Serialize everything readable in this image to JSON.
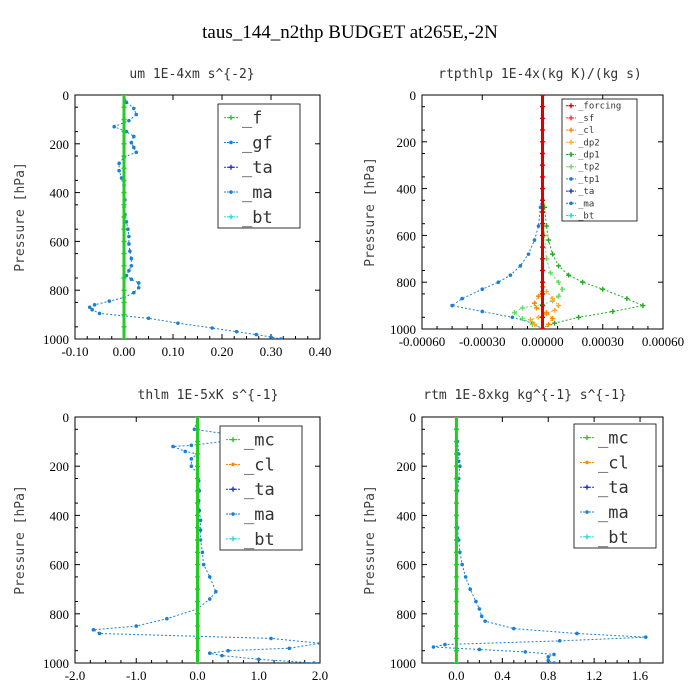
{
  "title": "taus_144_n2thp  BUDGET at265E,-2N",
  "chart_data": [
    {
      "type": "line",
      "title": "um  1E-4xm s^{-2}",
      "ylabel": "Pressure [hPa]",
      "xlim": [
        -0.1,
        0.4
      ],
      "ylim": [
        1000,
        0
      ],
      "xticks": [
        "-0.10",
        "0.00",
        "0.10",
        "0.20",
        "0.30",
        "0.40"
      ],
      "xtick_values": [
        -0.1,
        0,
        0.1,
        0.2,
        0.3,
        0.4
      ],
      "yticks": [
        "0",
        "200",
        "400",
        "600",
        "800",
        "1000"
      ],
      "ytick_values": [
        0,
        200,
        400,
        600,
        800,
        1000
      ],
      "legend_size": "big",
      "legend": [
        "_f",
        "_gf",
        "_ta",
        "_ma",
        "_bt"
      ],
      "series": [
        {
          "name": "_ma",
          "color": "#1a7fd6",
          "marker": "dot",
          "x": [
            0.0,
            0.005,
            0.02,
            0.025,
            0.01,
            -0.02,
            0.005,
            0.02,
            0.015,
            0.02,
            0.025,
            0.0,
            -0.01,
            -0.01,
            -0.005,
            0.0,
            0.0,
            0.002,
            0.0,
            0.002,
            0.005,
            0.008,
            0.01,
            0.01,
            0.012,
            0.015,
            0.015,
            0.01,
            0.005,
            0.015,
            0.03,
            0.03,
            0.02,
            0.0,
            -0.03,
            -0.06,
            -0.07,
            -0.065,
            -0.05,
            0.05,
            0.11,
            0.18,
            0.23,
            0.27,
            0.3,
            0.32
          ],
          "y": [
            0,
            30,
            55,
            80,
            105,
            130,
            150,
            170,
            195,
            215,
            235,
            255,
            280,
            310,
            340,
            370,
            400,
            430,
            460,
            490,
            520,
            550,
            580,
            610,
            640,
            670,
            700,
            720,
            740,
            755,
            770,
            790,
            810,
            830,
            845,
            860,
            870,
            880,
            895,
            915,
            935,
            955,
            970,
            982,
            992,
            1000
          ]
        },
        {
          "name": "_f",
          "color": "#22cc22",
          "marker": "cross",
          "x": [
            0,
            0,
            0,
            0,
            0,
            0,
            0,
            0,
            0,
            0,
            0,
            0,
            0,
            0,
            0,
            0,
            0,
            0,
            0,
            0,
            0
          ],
          "y": [
            0,
            50,
            100,
            150,
            200,
            250,
            300,
            350,
            400,
            450,
            500,
            550,
            600,
            650,
            700,
            750,
            800,
            850,
            900,
            950,
            1000
          ]
        }
      ]
    },
    {
      "type": "line",
      "title": "rtpthlp  1E-4x(kg K)/(kg s)",
      "ylabel": "Pressure [hPa]",
      "xlim": [
        -0.0006,
        0.0006
      ],
      "ylim": [
        1000,
        0
      ],
      "xticks": [
        "-0.00060",
        "-0.00030",
        "0.00000",
        "0.00030",
        "0.00060"
      ],
      "xtick_values": [
        -0.0006,
        -0.0003,
        0,
        0.0003,
        0.0006
      ],
      "yticks": [
        "0",
        "200",
        "400",
        "600",
        "800",
        "1000"
      ],
      "ytick_values": [
        0,
        200,
        400,
        600,
        800,
        1000
      ],
      "legend_size": "small",
      "legend": [
        "_forcing",
        "_sf",
        "_cl",
        "_dp2",
        "_dp1",
        "_tp2",
        "_tp1",
        "_ta",
        "_ma",
        "_bt"
      ],
      "series": [
        {
          "name": "_tp1",
          "color": "#1a7fd6",
          "marker": "dot",
          "x": [
            0,
            0,
            -1e-05,
            -2e-05,
            -4e-05,
            -7e-05,
            -0.00011,
            -0.00016,
            -0.00022,
            -0.0003,
            -0.0004,
            -0.00045,
            -0.0003,
            -0.00015,
            -5e-05,
            0
          ],
          "y": [
            0,
            400,
            480,
            560,
            620,
            680,
            730,
            770,
            800,
            830,
            870,
            900,
            925,
            950,
            975,
            1000
          ]
        },
        {
          "name": "_dp1",
          "color": "#22aa22",
          "marker": "cross",
          "x": [
            0,
            0,
            1e-05,
            2e-05,
            3e-05,
            5e-05,
            8e-05,
            0.00013,
            0.0002,
            0.0003,
            0.00042,
            0.0005,
            0.00035,
            0.00018,
            6e-05,
            0
          ],
          "y": [
            0,
            400,
            480,
            560,
            620,
            680,
            730,
            770,
            800,
            830,
            870,
            900,
            925,
            950,
            975,
            1000
          ]
        },
        {
          "name": "_tp2",
          "color": "#66dd66",
          "marker": "cross",
          "x": [
            0,
            0,
            1e-05,
            2e-05,
            4e-05,
            8e-05,
            0.0001,
            8e-05,
            5e-05,
            0.0,
            -0.0001,
            -0.00014,
            -0.0001,
            -5e-05,
            0
          ],
          "y": [
            0,
            500,
            600,
            700,
            760,
            800,
            830,
            860,
            880,
            895,
            910,
            930,
            955,
            980,
            1000
          ]
        },
        {
          "name": "_dp2",
          "color": "#ffaa33",
          "marker": "cross",
          "x": [
            0,
            0,
            2e-05,
            5e-05,
            8e-05,
            6e-05,
            2e-05,
            -2e-05,
            -6e-05,
            -4e-05,
            0
          ],
          "y": [
            0,
            800,
            840,
            870,
            900,
            920,
            935,
            950,
            960,
            980,
            1000
          ]
        },
        {
          "name": "_cl",
          "color": "#ff8800",
          "marker": "cross",
          "x": [
            0,
            0,
            -2e-05,
            -4e-05,
            -3e-05,
            2e-05,
            5e-05,
            3e-05,
            0
          ],
          "y": [
            0,
            820,
            860,
            890,
            910,
            930,
            955,
            980,
            1000
          ]
        },
        {
          "name": "_forcing",
          "color": "#dd0000",
          "marker": "cross",
          "x": [
            0,
            0,
            0,
            0,
            0,
            0,
            0,
            0,
            0,
            0,
            0,
            0,
            0,
            0,
            0,
            0,
            0,
            0,
            0,
            0,
            0
          ],
          "y": [
            0,
            50,
            100,
            150,
            200,
            250,
            300,
            350,
            400,
            450,
            500,
            550,
            600,
            650,
            700,
            750,
            800,
            850,
            900,
            950,
            1000
          ]
        }
      ]
    },
    {
      "type": "line",
      "title": "thlm  1E-5xK s^{-1}",
      "ylabel": "Pressure [hPa]",
      "xlim": [
        -2.0,
        2.0
      ],
      "ylim": [
        1000,
        0
      ],
      "xticks": [
        "-2.0",
        "-1.0",
        "0.0",
        "1.0",
        "2.0"
      ],
      "xtick_values": [
        -2,
        -1,
        0,
        1,
        2
      ],
      "yticks": [
        "0",
        "200",
        "400",
        "600",
        "800",
        "1000"
      ],
      "ytick_values": [
        0,
        200,
        400,
        600,
        800,
        1000
      ],
      "legend_size": "big",
      "legend": [
        "_mc",
        "_cl",
        "_ta",
        "_ma",
        "_bt"
      ],
      "series": [
        {
          "name": "_cl",
          "color": "#1a7fd6",
          "marker": "dot",
          "x": [
            0.0,
            -0.05,
            0.5,
            0.7,
            0.4,
            -0.1,
            -0.4,
            -0.2,
            0.0,
            -0.1,
            -0.1,
            0.0,
            0.02,
            0.03,
            0.02,
            0.03,
            0.05,
            0.05,
            0.05,
            0.08,
            0.1,
            0.2,
            0.3,
            0.2,
            0.0,
            -0.5,
            -1.0,
            -1.7,
            -1.6,
            1.2,
            2.0,
            1.5,
            0.5,
            0.2,
            0.4,
            1.0,
            1.9
          ],
          "y": [
            0,
            50,
            70,
            80,
            100,
            115,
            120,
            140,
            150,
            170,
            200,
            230,
            260,
            300,
            340,
            380,
            420,
            460,
            500,
            550,
            600,
            650,
            710,
            740,
            780,
            820,
            850,
            865,
            880,
            900,
            920,
            940,
            950,
            960,
            970,
            985,
            1000
          ]
        },
        {
          "name": "_mc",
          "color": "#22cc22",
          "marker": "cross",
          "x": [
            0,
            0,
            0,
            0,
            0,
            0,
            0,
            0,
            0,
            0,
            0,
            0,
            0,
            0,
            0,
            0,
            0,
            0,
            0,
            0,
            0
          ],
          "y": [
            0,
            50,
            100,
            150,
            200,
            250,
            300,
            350,
            400,
            450,
            500,
            550,
            600,
            650,
            700,
            750,
            800,
            850,
            900,
            950,
            1000
          ]
        }
      ]
    },
    {
      "type": "line",
      "title": "rtm  1E-8xkg kg^{-1} s^{-1}",
      "ylabel": "Pressure [hPa]",
      "xlim": [
        -0.3,
        1.8
      ],
      "ylim": [
        1000,
        0
      ],
      "xticks": [
        "0.0",
        "0.4",
        "0.8",
        "1.2",
        "1.6"
      ],
      "xtick_values": [
        0,
        0.4,
        0.8,
        1.2,
        1.6
      ],
      "yticks": [
        "0",
        "200",
        "400",
        "600",
        "800",
        "1000"
      ],
      "ytick_values": [
        0,
        200,
        400,
        600,
        800,
        1000
      ],
      "legend_size": "big",
      "legend": [
        "_mc",
        "_cl",
        "_ta",
        "_ma",
        "_bt"
      ],
      "series": [
        {
          "name": "_cl",
          "color": "#1a7fd6",
          "marker": "dot",
          "x": [
            0.0,
            0.0,
            0.01,
            0.02,
            0.02,
            0.03,
            0.02,
            0.01,
            0.0,
            0.0,
            0.01,
            0.02,
            0.03,
            0.05,
            0.08,
            0.12,
            0.17,
            0.2,
            0.22,
            0.25,
            0.5,
            1.05,
            1.65,
            0.9,
            -0.1,
            -0.2,
            0.2,
            0.6,
            0.85,
            0.8,
            0.8,
            0.85
          ],
          "y": [
            0,
            50,
            100,
            150,
            180,
            200,
            250,
            300,
            350,
            400,
            450,
            500,
            550,
            600,
            650,
            700,
            750,
            780,
            810,
            830,
            860,
            880,
            895,
            910,
            925,
            935,
            945,
            955,
            965,
            975,
            990,
            1000
          ]
        },
        {
          "name": "_mc",
          "color": "#22cc22",
          "marker": "cross",
          "x": [
            0,
            0,
            0,
            0,
            0,
            0,
            0,
            0,
            0,
            0,
            0,
            0,
            0,
            0,
            0,
            0,
            0,
            0,
            0,
            0,
            0
          ],
          "y": [
            0,
            50,
            100,
            150,
            200,
            250,
            300,
            350,
            400,
            450,
            500,
            550,
            600,
            650,
            700,
            750,
            800,
            850,
            900,
            950,
            1000
          ]
        }
      ]
    }
  ],
  "panels": [
    {
      "title": "um  1E-4xm s^{-2}",
      "ylabel": "Pressure [hPa]"
    },
    {
      "title": "rtpthlp  1E-4x(kg K)/(kg s)",
      "ylabel": "Pressure [hPa]"
    },
    {
      "title": "thlm  1E-5xK s^{-1}",
      "ylabel": "Pressure [hPa]"
    },
    {
      "title": "rtm  1E-8xkg kg^{-1} s^{-1}",
      "ylabel": "Pressure [hPa]"
    }
  ],
  "legend_colors": {
    "_forcing": "#dd0000",
    "_sf": "#ff3333",
    "_cl": "#ff8800",
    "_dp2": "#ffaa33",
    "_dp1": "#22aa22",
    "_tp2": "#66dd66",
    "_tp1": "#1a7fd6",
    "_ta": "#2233cc",
    "_ma": "#1a7fd6",
    "_bt": "#22dddd",
    "_f": "#22cc22",
    "_gf": "#1a7fd6",
    "_mc": "#22cc22"
  }
}
